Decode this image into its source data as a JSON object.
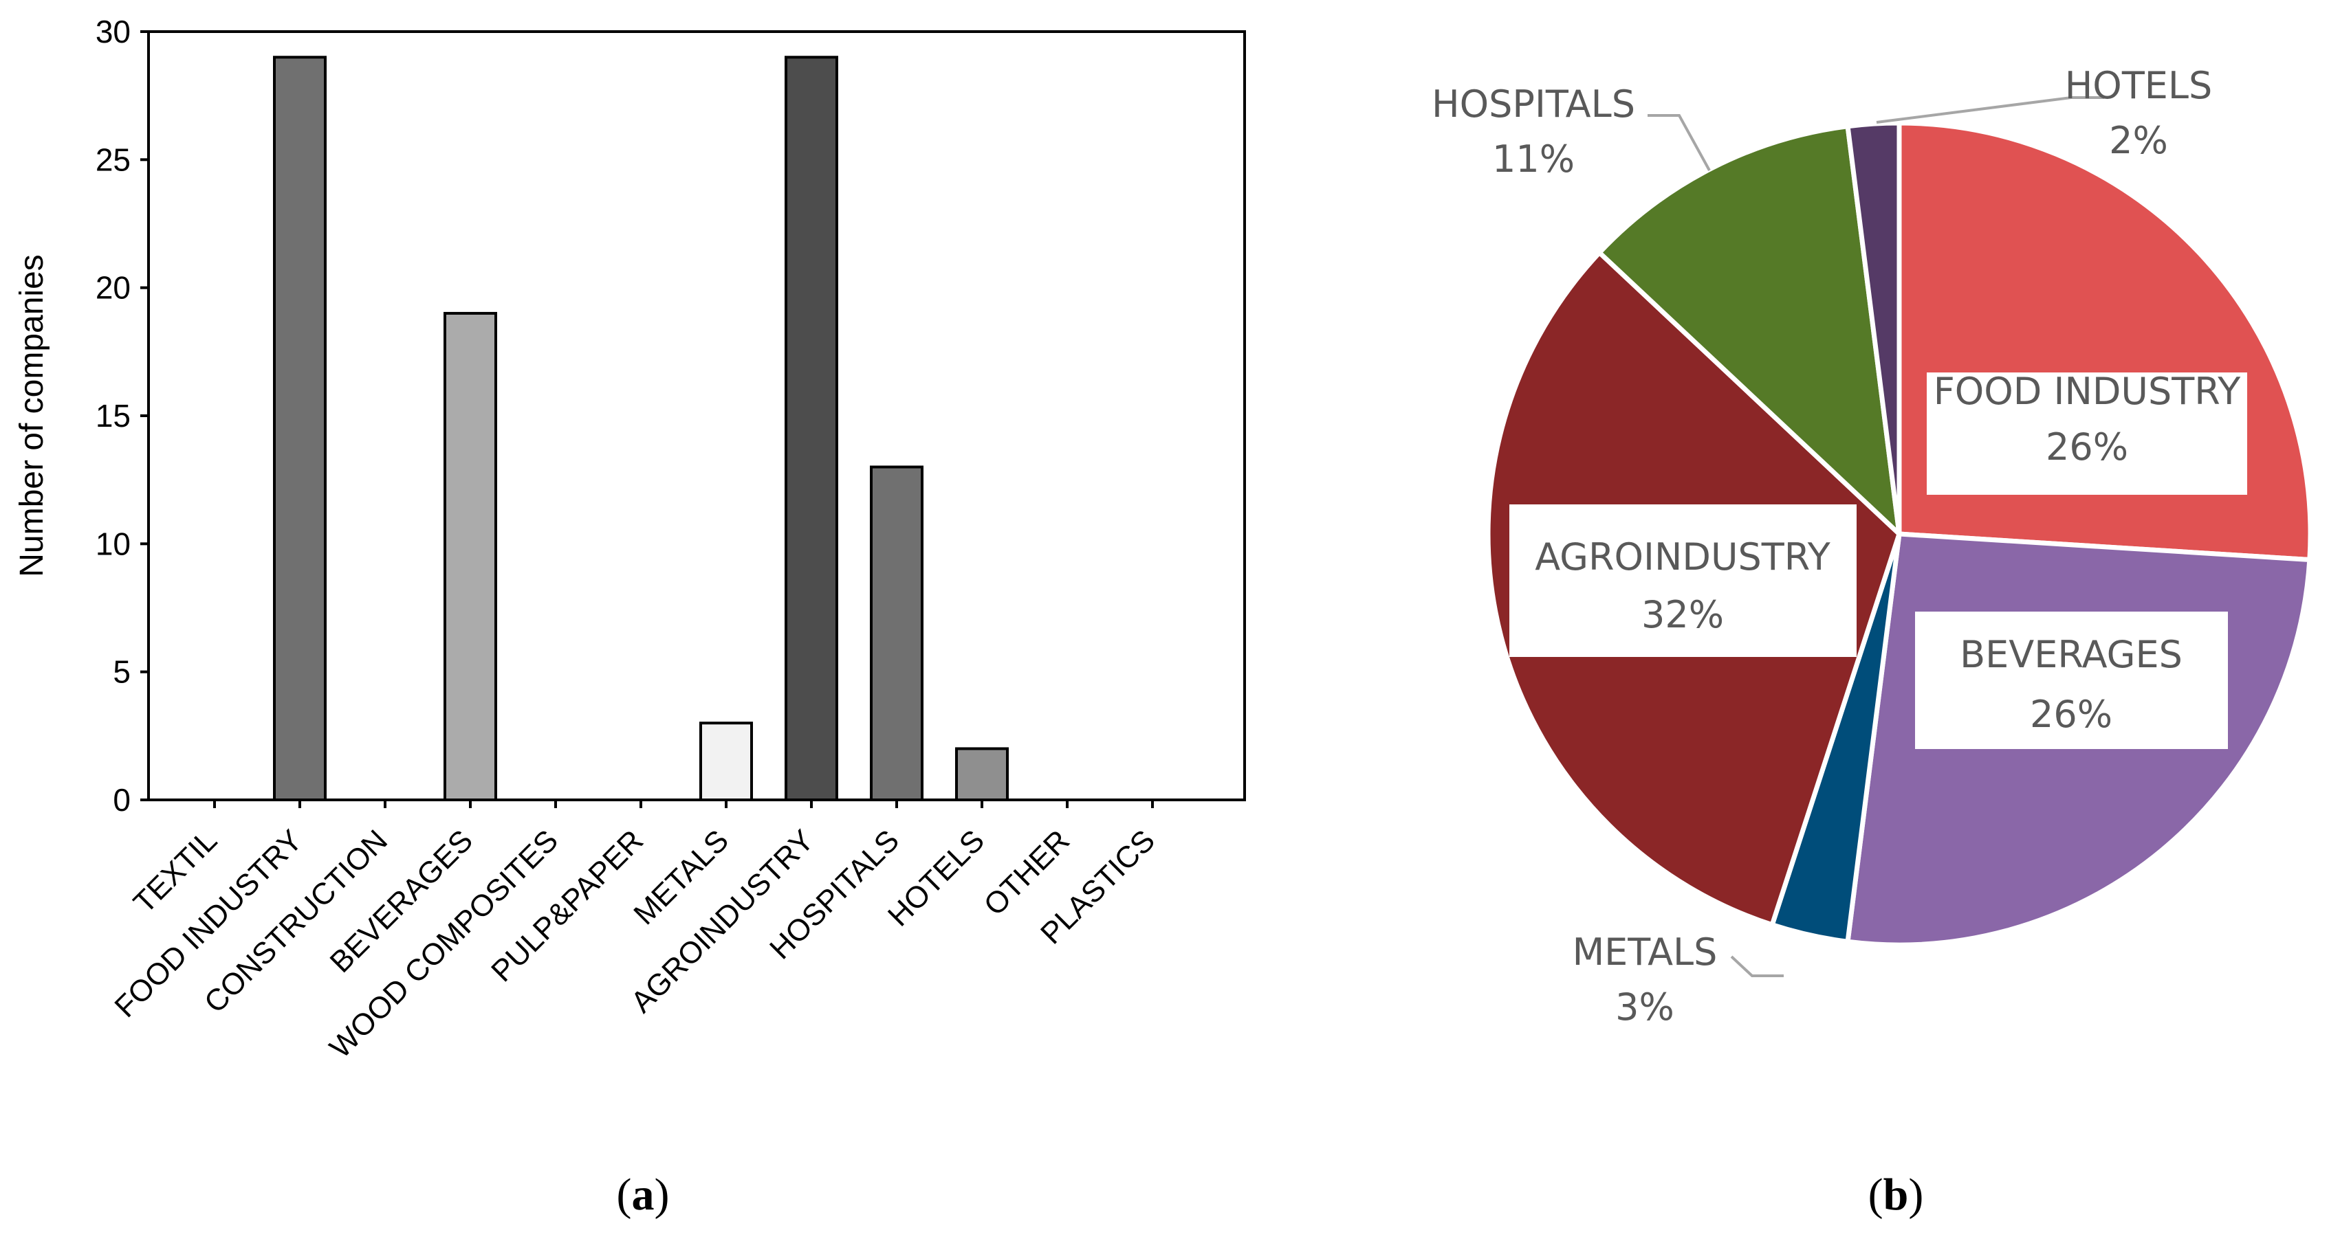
{
  "chart_data": [
    {
      "type": "bar",
      "panel_label": "a",
      "categories": [
        "TEXTIL",
        "FOOD INDUSTRY",
        "CONSTRUCTION",
        "BEVERAGES",
        "WOOD COMPOSITES",
        "PULP&PAPER",
        "METALS",
        "AGROINDUSTRY",
        "HOSPITALS",
        "HOTELS",
        "OTHER",
        "PLASTICS"
      ],
      "values": [
        0,
        29,
        0,
        19,
        0,
        0,
        3,
        29,
        13,
        2,
        0,
        0
      ],
      "bar_colors": [
        "#707070",
        "#707070",
        "#707070",
        "#ababab",
        "#707070",
        "#707070",
        "#f2f2f2",
        "#4d4d4d",
        "#707070",
        "#8f8f8f",
        "#707070",
        "#707070"
      ],
      "title": "",
      "xlabel": "",
      "ylabel": "Number of companies",
      "ylim": [
        0,
        30
      ],
      "yticks": [
        0,
        5,
        10,
        15,
        20,
        25,
        30
      ],
      "grid": false
    },
    {
      "type": "pie",
      "panel_label": "b",
      "slices": [
        {
          "label": "FOOD INDUSTRY",
          "value": 26,
          "pct_label": "26%",
          "color": "#e05252"
        },
        {
          "label": "BEVERAGES",
          "value": 26,
          "pct_label": "26%",
          "color": "#8a67a8"
        },
        {
          "label": "METALS",
          "value": 3,
          "pct_label": "3%",
          "color": "#004d7a"
        },
        {
          "label": "AGROINDUSTRY",
          "value": 32,
          "pct_label": "32%",
          "color": "#8b2627"
        },
        {
          "label": "HOSPITALS",
          "value": 11,
          "pct_label": "11%",
          "color": "#557a27"
        },
        {
          "label": "HOTELS",
          "value": 2,
          "pct_label": "2%",
          "color": "#553a66"
        }
      ],
      "start_angle": "12 o'clock, clockwise"
    }
  ],
  "captions": {
    "a": "a",
    "b": "b"
  }
}
